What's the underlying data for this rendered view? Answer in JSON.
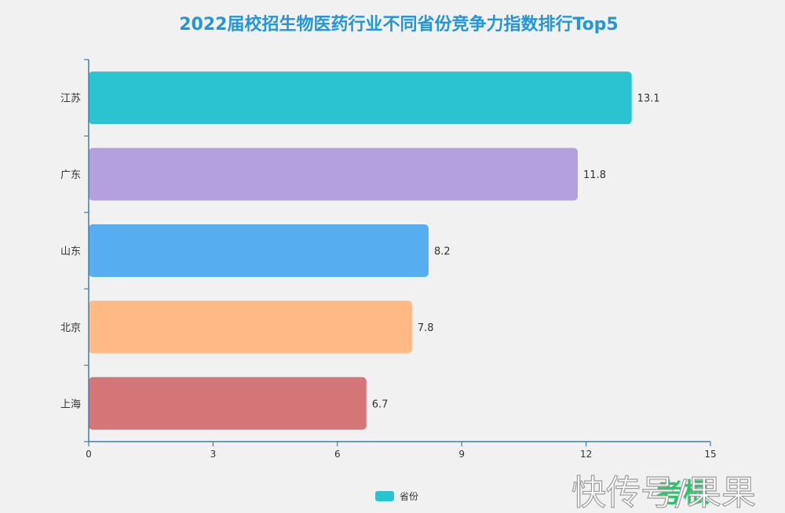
{
  "chart_data": {
    "type": "bar",
    "orientation": "horizontal",
    "title": "2022届校招生物医药行业不同省份竞争力指数排行Top5",
    "categories": [
      "江苏",
      "广东",
      "山东",
      "北京",
      "上海"
    ],
    "series": [
      {
        "name": "省份",
        "values": [
          13.1,
          11.8,
          8.2,
          7.8,
          6.7
        ],
        "colors": [
          "#2ac4d0",
          "#b3a0dc",
          "#56adf0",
          "#ffb985",
          "#d47578"
        ]
      }
    ],
    "xlim": [
      0,
      15
    ],
    "xticks": [
      "0",
      "3",
      "6",
      "9",
      "12",
      "15"
    ],
    "xlabel": "",
    "ylabel": "",
    "grid": false,
    "legend": {
      "position": "bottom-center",
      "label": "省份",
      "color": "#2ac4d0"
    },
    "value_labels": [
      "13.1",
      "11.8",
      "8.2",
      "7.8",
      "6.7"
    ]
  },
  "watermark": {
    "text": "快传号/果果",
    "logo_text": "考根"
  }
}
